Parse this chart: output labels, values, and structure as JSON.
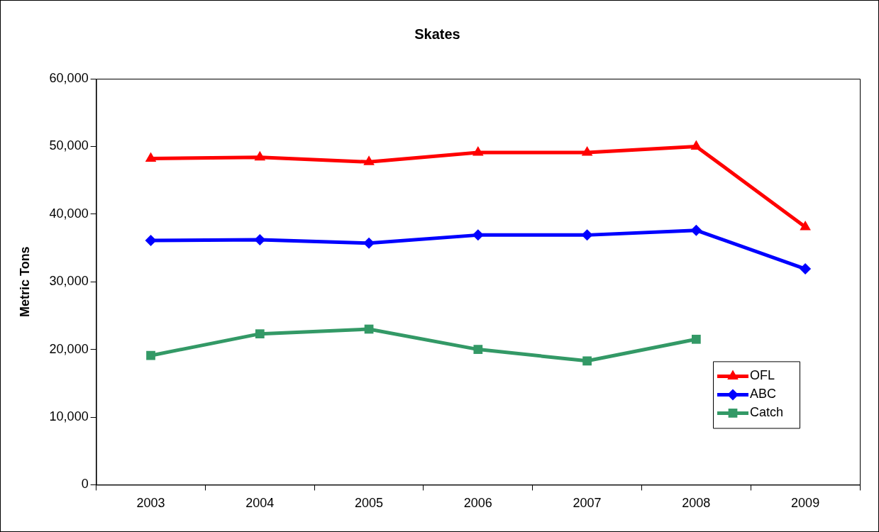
{
  "chart_data": {
    "type": "line",
    "title": "Skates",
    "ylabel": "Metric Tons",
    "categories": [
      "2003",
      "2004",
      "2005",
      "2006",
      "2007",
      "2008",
      "2009"
    ],
    "series": [
      {
        "name": "OFL",
        "color": "#ff0000",
        "marker": "triangle",
        "values": [
          48200,
          48400,
          47700,
          49100,
          49100,
          50000,
          38100
        ]
      },
      {
        "name": "ABC",
        "color": "#0000ff",
        "marker": "diamond",
        "values": [
          36100,
          36200,
          35700,
          36900,
          36900,
          37600,
          31900
        ]
      },
      {
        "name": "Catch",
        "color": "#339966",
        "marker": "square",
        "values": [
          19100,
          22300,
          23000,
          20000,
          18300,
          21500,
          null
        ]
      }
    ],
    "ylim": [
      0,
      60000
    ],
    "yticks": [
      {
        "value": 0,
        "label": "0"
      },
      {
        "value": 10000,
        "label": "10,000"
      },
      {
        "value": 20000,
        "label": "20,000"
      },
      {
        "value": 30000,
        "label": "30,000"
      },
      {
        "value": 40000,
        "label": "40,000"
      },
      {
        "value": 50000,
        "label": "50,000"
      },
      {
        "value": 60000,
        "label": "60,000"
      }
    ],
    "grid": false,
    "legend": "bottom right",
    "line_style": "solid"
  }
}
